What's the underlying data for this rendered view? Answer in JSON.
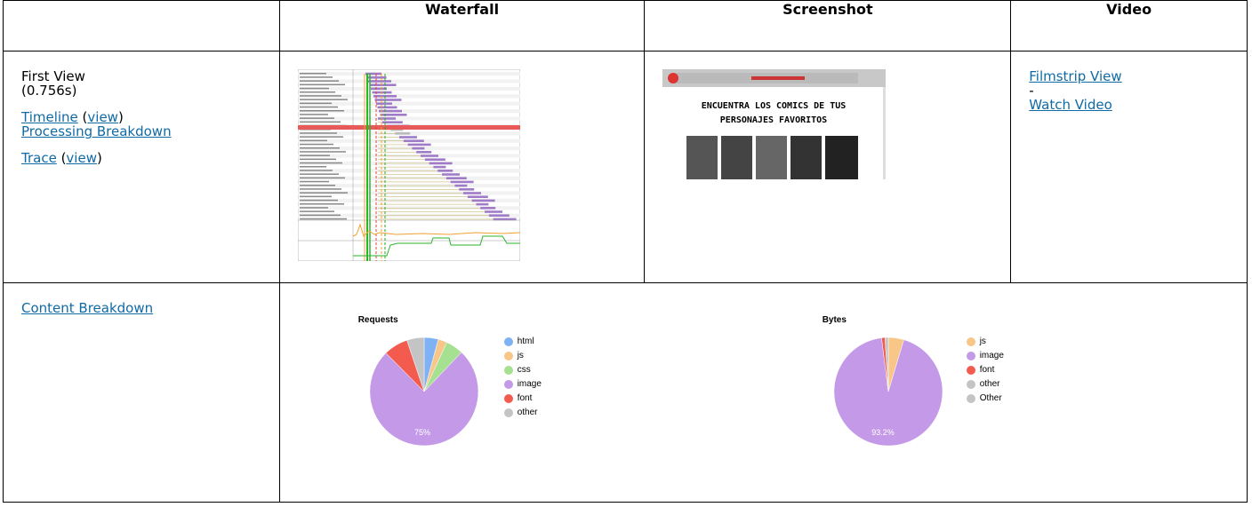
{
  "headers": {
    "col1": "",
    "waterfall": "Waterfall",
    "screenshot": "Screenshot",
    "video": "Video"
  },
  "first_view": {
    "label": "First View",
    "time": "(0.756s)",
    "timeline": "Timeline",
    "timeline_view": "view",
    "processing": "Processing Breakdown",
    "trace": "Trace",
    "trace_view": "view"
  },
  "screenshot": {
    "heading_line1": "ENCUENTRA LOS COMICS DE TUS",
    "heading_line2": "PERSONAJES FAVORITOS"
  },
  "video": {
    "filmstrip": "Filmstrip View",
    "sep": "-",
    "watch": "Watch Video"
  },
  "content": {
    "breakdown": "Content Breakdown"
  },
  "requests_chart": {
    "title": "Requests",
    "center_label": "75%",
    "legend": [
      {
        "name": "html",
        "color": "#7fb1f5"
      },
      {
        "name": "js",
        "color": "#f9c689"
      },
      {
        "name": "css",
        "color": "#a6e091"
      },
      {
        "name": "image",
        "color": "#c49ae8"
      },
      {
        "name": "font",
        "color": "#f35b4f"
      },
      {
        "name": "other",
        "color": "#c4c4c4"
      }
    ]
  },
  "bytes_chart": {
    "title": "Bytes",
    "center_label": "93.2%",
    "legend": [
      {
        "name": "js",
        "color": "#f9c689"
      },
      {
        "name": "image",
        "color": "#c49ae8"
      },
      {
        "name": "font",
        "color": "#f35b4f"
      },
      {
        "name": "other",
        "color": "#c4c4c4"
      },
      {
        "name": "Other",
        "color": "#c4c4c4"
      }
    ]
  }
}
